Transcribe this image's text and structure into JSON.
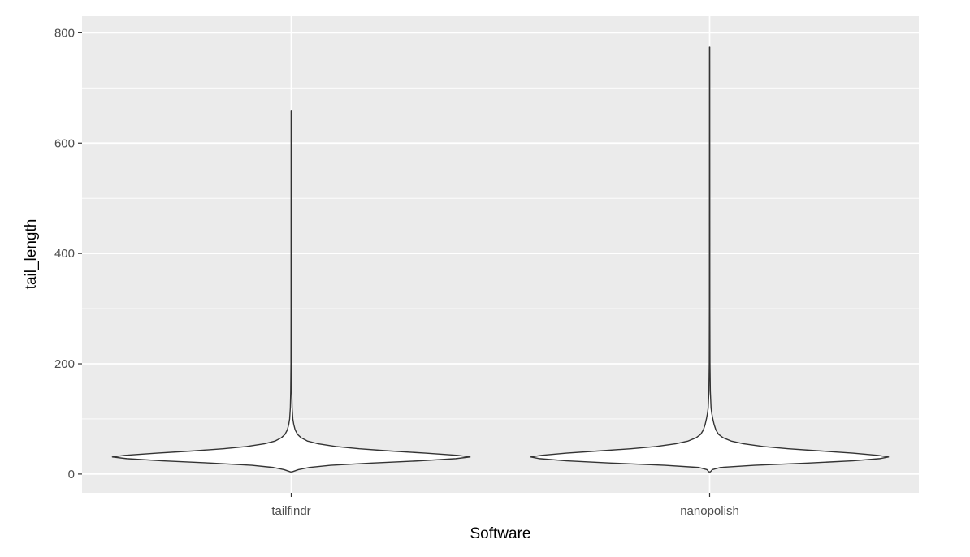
{
  "chart_data": {
    "type": "violin",
    "title": "",
    "xlabel": "Software",
    "ylabel": "tail_length",
    "ylim": [
      -34,
      830
    ],
    "yticks": [
      0,
      200,
      400,
      600,
      800
    ],
    "grid": true,
    "legend": "none",
    "colors": {
      "panel": "#ebebeb",
      "grid": "#ffffff",
      "outline": "#333333",
      "fill": "#ffffff"
    },
    "categories": [
      "tailfindr",
      "nanopolish"
    ],
    "series": [
      {
        "category": "tailfindr",
        "min": 4,
        "max": 658,
        "mode": 31,
        "density_profile": [
          [
            4,
            0.004
          ],
          [
            8,
            0.04
          ],
          [
            12,
            0.1
          ],
          [
            16,
            0.22
          ],
          [
            20,
            0.45
          ],
          [
            24,
            0.72
          ],
          [
            28,
            0.92
          ],
          [
            31,
            1.0
          ],
          [
            34,
            0.93
          ],
          [
            38,
            0.75
          ],
          [
            42,
            0.55
          ],
          [
            46,
            0.38
          ],
          [
            50,
            0.25
          ],
          [
            55,
            0.15
          ],
          [
            60,
            0.09
          ],
          [
            66,
            0.055
          ],
          [
            72,
            0.035
          ],
          [
            80,
            0.022
          ],
          [
            90,
            0.014
          ],
          [
            100,
            0.009
          ],
          [
            120,
            0.005
          ],
          [
            150,
            0.003
          ],
          [
            200,
            0.0015
          ],
          [
            300,
            0.001
          ],
          [
            450,
            0.0008
          ],
          [
            658,
            0.0005
          ]
        ]
      },
      {
        "category": "nanopolish",
        "min": 4,
        "max": 774,
        "mode": 31,
        "density_profile": [
          [
            4,
            0.004
          ],
          [
            8,
            0.015
          ],
          [
            12,
            0.06
          ],
          [
            16,
            0.25
          ],
          [
            20,
            0.55
          ],
          [
            24,
            0.8
          ],
          [
            28,
            0.95
          ],
          [
            31,
            1.0
          ],
          [
            34,
            0.94
          ],
          [
            38,
            0.8
          ],
          [
            42,
            0.62
          ],
          [
            46,
            0.44
          ],
          [
            50,
            0.3
          ],
          [
            55,
            0.19
          ],
          [
            60,
            0.12
          ],
          [
            66,
            0.075
          ],
          [
            72,
            0.05
          ],
          [
            80,
            0.035
          ],
          [
            90,
            0.025
          ],
          [
            100,
            0.018
          ],
          [
            110,
            0.012
          ],
          [
            120,
            0.008
          ],
          [
            150,
            0.004
          ],
          [
            200,
            0.002
          ],
          [
            300,
            0.0012
          ],
          [
            450,
            0.001
          ],
          [
            600,
            0.0008
          ],
          [
            774,
            0.0006
          ]
        ]
      }
    ]
  }
}
